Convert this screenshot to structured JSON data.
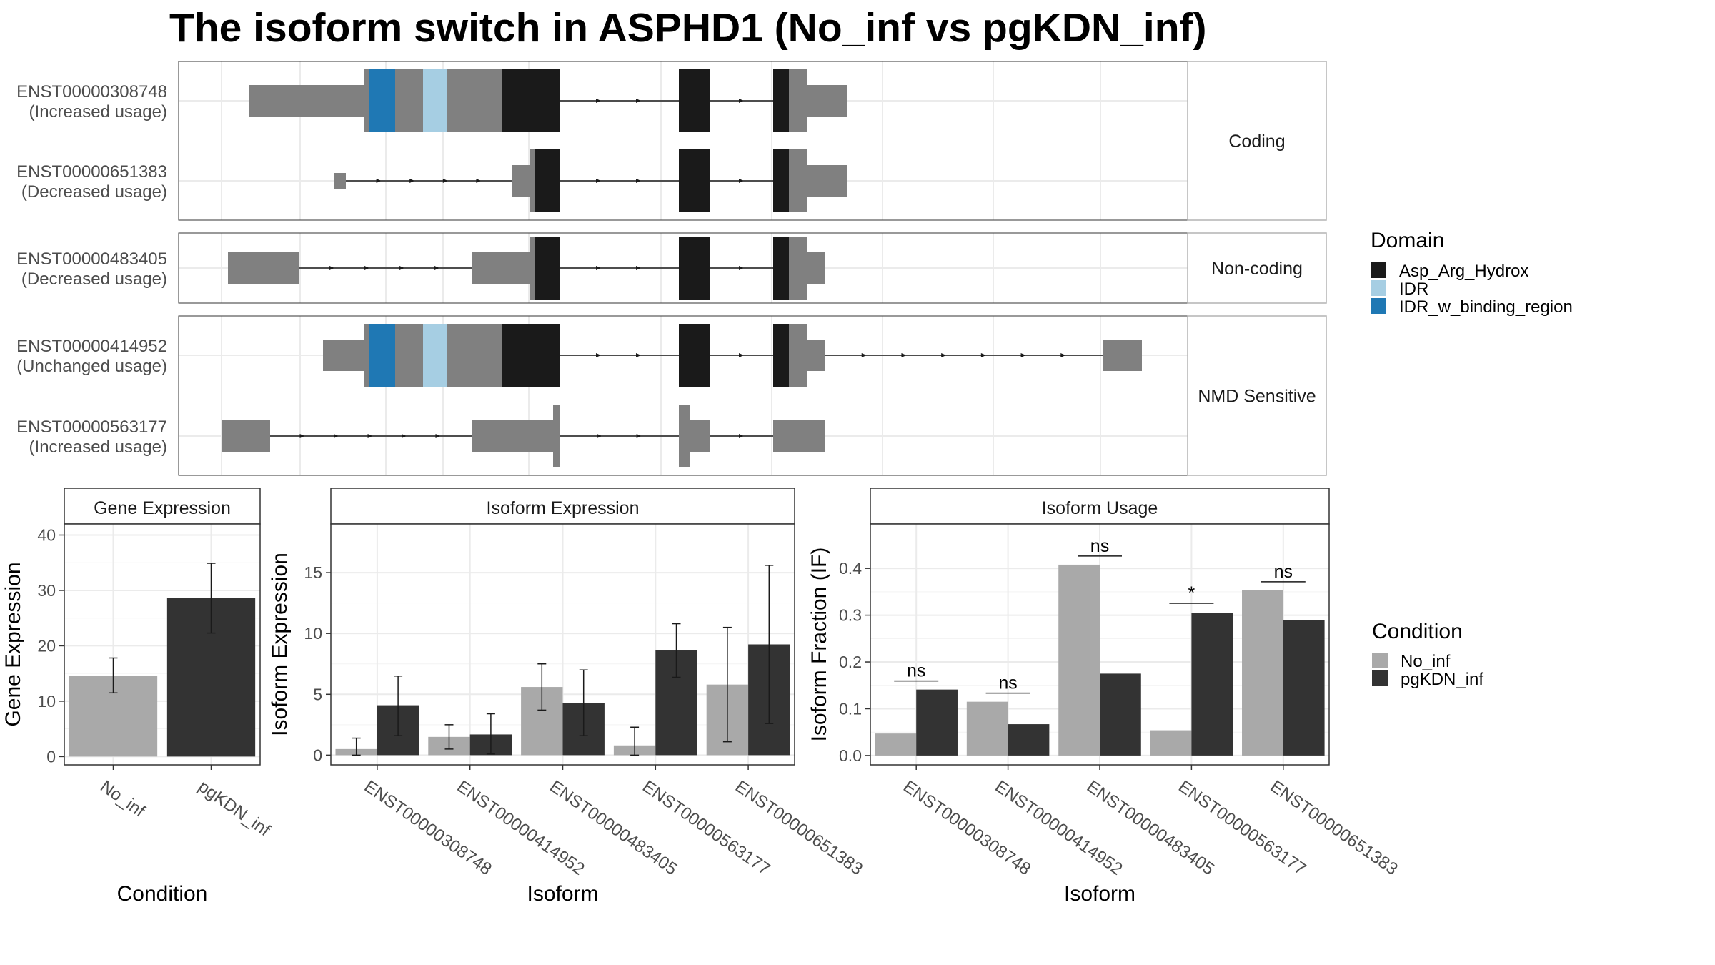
{
  "title": "The isoform switch in ASPHD1 (No_inf vs pgKDN_inf)",
  "colors": {
    "Asp_Arg_Hydrox": "#1a1a1a",
    "IDR": "#a6cee3",
    "IDR_w_binding_region": "#1f78b4",
    "exon": "#808080",
    "No_inf": "#a9a9a9",
    "pgKDN_inf": "#333333"
  },
  "structure": {
    "groups": [
      {
        "label": "Coding",
        "isoforms": [
          {
            "id": "ENST00000308748",
            "usage": "(Increased usage)"
          },
          {
            "id": "ENST00000651383",
            "usage": "(Decreased usage)"
          }
        ]
      },
      {
        "label": "Non-coding",
        "isoforms": [
          {
            "id": "ENST00000483405",
            "usage": "(Decreased usage)"
          }
        ]
      },
      {
        "label": "NMD Sensitive",
        "isoforms": [
          {
            "id": "ENST00000414952",
            "usage": "(Unchanged usage)"
          },
          {
            "id": "ENST00000563177",
            "usage": "(Increased usage)"
          }
        ]
      }
    ],
    "domain_legend": {
      "title": "Domain",
      "items": [
        "Asp_Arg_Hydrox",
        "IDR",
        "IDR_w_binding_region"
      ]
    }
  },
  "chart_data": [
    {
      "type": "bar",
      "title": "Gene Expression",
      "xlabel": "Condition",
      "ylabel": "Gene Expression",
      "categories": [
        "No_inf",
        "pgKDN_inf"
      ],
      "values": [
        14.6,
        28.6
      ],
      "errors": [
        [
          11.5,
          17.8
        ],
        [
          22.3,
          34.9
        ]
      ],
      "ylim": [
        -1.5,
        42
      ],
      "yticks": [
        0,
        10,
        20,
        30,
        40
      ]
    },
    {
      "type": "bar",
      "title": "Isoform Expression",
      "xlabel": "Isoform",
      "ylabel": "Isoform Expression",
      "categories": [
        "ENST00000308748",
        "ENST00000414952",
        "ENST00000483405",
        "ENST00000563177",
        "ENST00000651383"
      ],
      "series": [
        {
          "name": "No_inf",
          "values": [
            0.5,
            1.5,
            5.6,
            0.8,
            5.8
          ],
          "errors": [
            [
              0,
              1.4
            ],
            [
              0.5,
              2.5
            ],
            [
              3.7,
              7.5
            ],
            [
              0,
              2.3
            ],
            [
              1.1,
              10.5
            ]
          ]
        },
        {
          "name": "pgKDN_inf",
          "values": [
            4.1,
            1.7,
            4.3,
            8.6,
            9.1
          ],
          "errors": [
            [
              1.6,
              6.5
            ],
            [
              0.1,
              3.4
            ],
            [
              1.6,
              7.0
            ],
            [
              6.4,
              10.8
            ],
            [
              2.6,
              15.6
            ]
          ]
        }
      ],
      "ylim": [
        -0.8,
        19
      ],
      "yticks": [
        0,
        5,
        10,
        15
      ]
    },
    {
      "type": "bar",
      "title": "Isoform Usage",
      "xlabel": "Isoform",
      "ylabel": "Isoform Fraction (IF)",
      "categories": [
        "ENST00000308748",
        "ENST00000414952",
        "ENST00000483405",
        "ENST00000563177",
        "ENST00000651383"
      ],
      "series": [
        {
          "name": "No_inf",
          "values": [
            0.047,
            0.115,
            0.408,
            0.054,
            0.353
          ]
        },
        {
          "name": "pgKDN_inf",
          "values": [
            0.141,
            0.067,
            0.175,
            0.304,
            0.29
          ]
        }
      ],
      "significance": [
        "ns",
        "ns",
        "ns",
        "*",
        "ns"
      ],
      "ylim": [
        -0.02,
        0.495
      ],
      "yticks": [
        0.0,
        0.1,
        0.2,
        0.3,
        0.4
      ],
      "ytick_labels": [
        "0.0",
        "0.1",
        "0.2",
        "0.3",
        "0.4"
      ]
    }
  ],
  "condition_legend": {
    "title": "Condition",
    "items": [
      "No_inf",
      "pgKDN_inf"
    ]
  }
}
